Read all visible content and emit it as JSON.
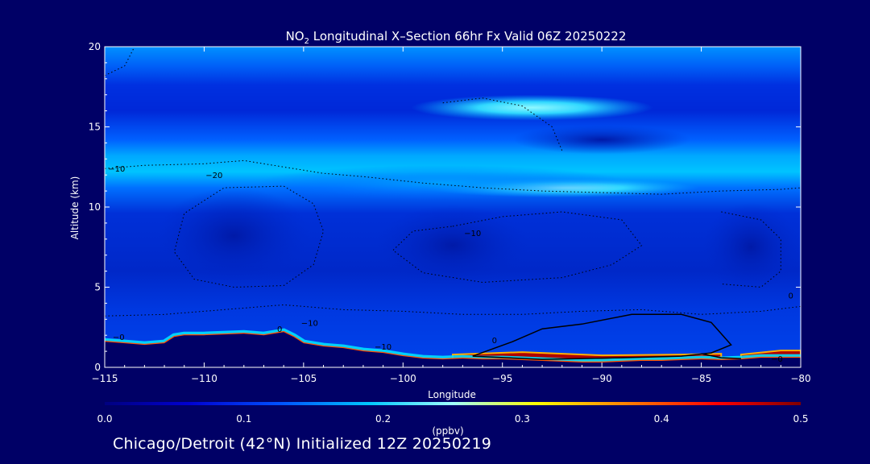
{
  "chart_data": {
    "type": "heatmap",
    "title_prefix": "NO",
    "title_subscript": "2",
    "title_suffix": " Longitudinal X–Section 66hr  Fx Valid 06Z 20250222",
    "xlabel": "Longitude",
    "ylabel": "Altitude (km)",
    "xlim": [
      -115,
      -80
    ],
    "ylim": [
      0,
      20
    ],
    "x_ticks": [
      -115,
      -110,
      -105,
      -100,
      -95,
      -90,
      -85,
      -80
    ],
    "x_tick_labels": [
      "−115",
      "−110",
      "−105",
      "−100",
      "−95",
      "−90",
      "−85",
      "−80"
    ],
    "y_ticks": [
      0,
      5,
      10,
      15,
      20
    ],
    "y_tick_labels": [
      "0",
      "5",
      "10",
      "15",
      "20"
    ],
    "colorbar": {
      "label": "(ppbv)",
      "range": [
        0.0,
        0.5
      ],
      "ticks": [
        0.0,
        0.1,
        0.2,
        0.3,
        0.4,
        0.5
      ],
      "tick_labels": [
        "0.0",
        "0.1",
        "0.2",
        "0.3",
        "0.4",
        "0.5"
      ],
      "colors": [
        "#000080",
        "#0000d0",
        "#0050ff",
        "#00c8ff",
        "#a0ffff",
        "#ffff00",
        "#ff8000",
        "#ff0000",
        "#800000"
      ]
    },
    "colors": {
      "background": "#000066",
      "field_base": "#0038e8",
      "upper_band": "#00b8ff",
      "upper_core": "#7ff0ff",
      "surface_high": "#a00000",
      "terrain": "#000060"
    },
    "terrain_profile": {
      "x": [
        -115,
        -114,
        -113,
        -112,
        -111.5,
        -111,
        -110,
        -108,
        -107,
        -106,
        -105.5,
        -105,
        -104,
        -103,
        -102,
        -101,
        -100,
        -99,
        -98,
        -97,
        -96,
        -95,
        -94,
        -93,
        -92,
        -91,
        -90,
        -89,
        -88,
        -87,
        -86,
        -85,
        -84,
        -83,
        -82,
        -81,
        -80
      ],
      "y": [
        1.6,
        1.5,
        1.4,
        1.5,
        1.9,
        2.0,
        2.0,
        2.1,
        2.0,
        2.2,
        1.9,
        1.5,
        1.3,
        1.2,
        1.0,
        0.9,
        0.7,
        0.55,
        0.5,
        0.55,
        0.5,
        0.5,
        0.45,
        0.4,
        0.35,
        0.3,
        0.3,
        0.35,
        0.4,
        0.4,
        0.45,
        0.5,
        0.45,
        0.5,
        0.6,
        0.6,
        0.6
      ]
    },
    "polluted_layer": {
      "segments": [
        {
          "x": [
            -97.5,
            -94,
            -90,
            -86,
            -84
          ],
          "bottom": [
            0.4,
            0.4,
            0.3,
            0.35,
            0.45
          ],
          "top": [
            0.8,
            0.95,
            0.75,
            0.8,
            0.85
          ]
        },
        {
          "x": [
            -83,
            -81,
            -80
          ],
          "bottom": [
            0.5,
            0.6,
            0.6
          ],
          "top": [
            0.8,
            1.05,
            1.05
          ]
        }
      ]
    },
    "contours": {
      "dotted": [
        {
          "x": [
            -115,
            -113,
            -110,
            -108,
            -106,
            -104,
            -102,
            -99,
            -96,
            -93,
            -90,
            -87,
            -84,
            -81,
            -80
          ],
          "y": [
            12.4,
            12.6,
            12.7,
            12.9,
            12.5,
            12.1,
            11.9,
            11.5,
            11.2,
            11.0,
            10.9,
            10.8,
            11.0,
            11.1,
            11.2
          ]
        },
        {
          "x": [
            -115,
            -112,
            -109,
            -106,
            -103,
            -100,
            -97,
            -94,
            -91,
            -88,
            -85,
            -82,
            -80
          ],
          "y": [
            3.2,
            3.3,
            3.6,
            3.9,
            3.6,
            3.5,
            3.3,
            3.3,
            3.5,
            3.6,
            3.3,
            3.5,
            3.8
          ]
        },
        {
          "x": [
            -106,
            -104.5,
            -104,
            -104.5,
            -106,
            -108.5,
            -110.5,
            -111.5,
            -111,
            -109,
            -106
          ],
          "y": [
            11.3,
            10.2,
            8.5,
            6.4,
            5.1,
            5.0,
            5.5,
            7.2,
            9.6,
            11.2,
            11.3
          ]
        },
        {
          "x": [
            -97.5,
            -95,
            -92,
            -89,
            -88,
            -89.5,
            -92,
            -96,
            -99,
            -100.5,
            -99.5,
            -97.5
          ],
          "y": [
            8.8,
            9.4,
            9.7,
            9.2,
            7.6,
            6.4,
            5.6,
            5.3,
            5.9,
            7.3,
            8.5,
            8.8
          ]
        },
        {
          "x": [
            -115,
            -114,
            -113.5
          ],
          "y": [
            18.2,
            18.8,
            20.0
          ]
        },
        {
          "x": [
            -98,
            -96,
            -94,
            -92.5,
            -92
          ],
          "y": [
            16.5,
            16.8,
            16.3,
            15.0,
            13.5
          ]
        },
        {
          "x": [
            -84,
            -82,
            -81,
            -81,
            -82,
            -84
          ],
          "y": [
            9.7,
            9.2,
            8.0,
            6.0,
            5.0,
            5.2
          ]
        }
      ],
      "solid": [
        {
          "x": [
            -96.5,
            -94.5,
            -93,
            -91,
            -88.5,
            -86,
            -84.5,
            -83.5,
            -84.5,
            -86,
            -89,
            -93,
            -96.5
          ],
          "y": [
            0.7,
            1.6,
            2.4,
            2.7,
            3.3,
            3.3,
            2.8,
            1.4,
            0.9,
            0.7,
            0.6,
            0.5,
            0.7
          ]
        },
        {
          "x": [
            -85,
            -84,
            -83
          ],
          "y": [
            0.85,
            0.6,
            0.55
          ]
        }
      ],
      "labels": [
        {
          "text": "−10",
          "x": -114.4,
          "y": 12.2
        },
        {
          "text": "−20",
          "x": -109.5,
          "y": 11.8
        },
        {
          "text": "−10",
          "x": -104.7,
          "y": 2.6
        },
        {
          "text": "−10",
          "x": -101,
          "y": 1.1
        },
        {
          "text": "−10",
          "x": -96.5,
          "y": 8.2
        },
        {
          "text": "−0",
          "x": -114.3,
          "y": 1.7
        },
        {
          "text": "0",
          "x": -106.2,
          "y": 2.2
        },
        {
          "text": "0",
          "x": -95.4,
          "y": 1.5
        },
        {
          "text": "−0",
          "x": -81.2,
          "y": 0.35
        },
        {
          "text": "0",
          "x": -80.5,
          "y": 4.3
        }
      ]
    }
  },
  "footer": {
    "text": "Chicago/Detroit (42°N) Initialized 12Z 20250219"
  }
}
